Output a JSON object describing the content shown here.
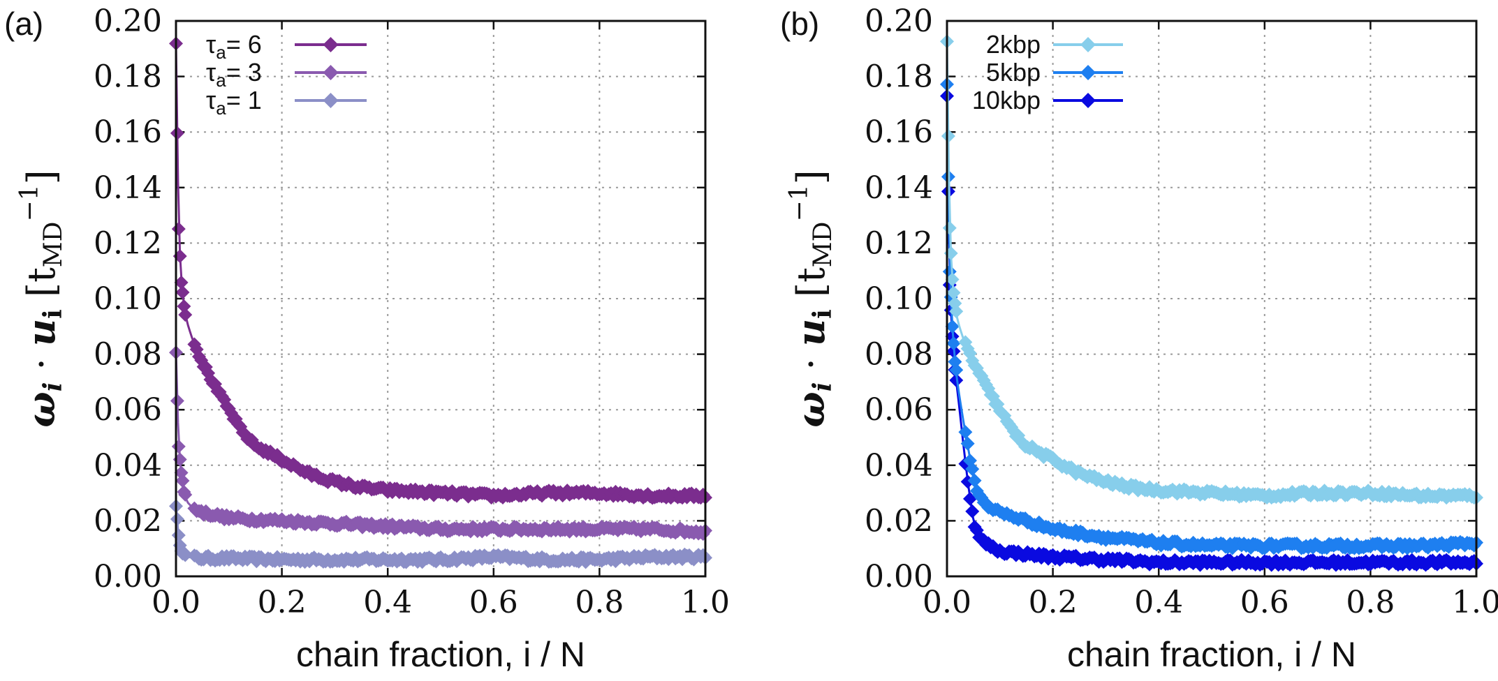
{
  "chart_data": [
    {
      "type": "line",
      "panel_label": "(a)",
      "xlabel": "chain fraction, i / N",
      "ylabel": {
        "omega": "ω",
        "i": "i",
        "dot": "·",
        "u": "u",
        "sub_i": "i",
        "unit_open": "[t",
        "unit_sub": "MD",
        "unit_sup": "−1",
        "unit_close": "]"
      },
      "xlim": [
        0,
        1
      ],
      "ylim": [
        0,
        0.2
      ],
      "x_ticks": [
        "0.0",
        "0.2",
        "0.4",
        "0.6",
        "0.8",
        "1.0"
      ],
      "y_ticks": [
        "0.00",
        "0.02",
        "0.04",
        "0.06",
        "0.08",
        "0.10",
        "0.12",
        "0.14",
        "0.16",
        "0.18",
        "0.20"
      ],
      "grid": true,
      "legend_position": "top-left",
      "series": [
        {
          "name": "6",
          "legend_prefix": "τ",
          "legend_sub": "a",
          "legend_eq": "=",
          "color": "#7b2d8e",
          "x": [
            0.0,
            0.005,
            0.01,
            0.015,
            0.02,
            0.03,
            0.05,
            0.075,
            0.1,
            0.125,
            0.15,
            0.2,
            0.25,
            0.3,
            0.35,
            0.4,
            0.5,
            0.6,
            0.7,
            0.8,
            0.9,
            1.0
          ],
          "y": [
            0.192,
            0.126,
            0.106,
            0.098,
            0.092,
            0.086,
            0.077,
            0.068,
            0.06,
            0.052,
            0.047,
            0.042,
            0.037,
            0.034,
            0.032,
            0.031,
            0.03,
            0.029,
            0.03,
            0.03,
            0.029,
            0.029
          ]
        },
        {
          "name": "3",
          "legend_prefix": "τ",
          "legend_sub": "a",
          "legend_eq": "=",
          "color": "#8a5aaf",
          "x": [
            0.0,
            0.005,
            0.01,
            0.015,
            0.02,
            0.03,
            0.05,
            0.1,
            0.2,
            0.3,
            0.4,
            0.5,
            0.6,
            0.7,
            0.8,
            0.9,
            1.0
          ],
          "y": [
            0.081,
            0.047,
            0.037,
            0.031,
            0.027,
            0.025,
            0.023,
            0.021,
            0.02,
            0.019,
            0.018,
            0.017,
            0.017,
            0.017,
            0.017,
            0.017,
            0.016
          ]
        },
        {
          "name": "1",
          "legend_prefix": "τ",
          "legend_sub": "a",
          "legend_eq": "=",
          "color": "#8b8fc7",
          "x": [
            0.0,
            0.005,
            0.01,
            0.015,
            0.02,
            0.05,
            0.1,
            0.2,
            0.3,
            0.4,
            0.5,
            0.6,
            0.7,
            0.8,
            0.9,
            1.0
          ],
          "y": [
            0.026,
            0.014,
            0.01,
            0.008,
            0.007,
            0.0065,
            0.0065,
            0.006,
            0.006,
            0.006,
            0.006,
            0.007,
            0.006,
            0.006,
            0.007,
            0.007
          ]
        }
      ]
    },
    {
      "type": "line",
      "panel_label": "(b)",
      "xlabel": "chain fraction, i / N",
      "ylabel": {
        "omega": "ω",
        "i": "i",
        "dot": "·",
        "u": "u",
        "sub_i": "i",
        "unit_open": "[t",
        "unit_sub": "MD",
        "unit_sup": "−1",
        "unit_close": "]"
      },
      "xlim": [
        0,
        1
      ],
      "ylim": [
        0,
        0.2
      ],
      "x_ticks": [
        "0.0",
        "0.2",
        "0.4",
        "0.6",
        "0.8",
        "1.0"
      ],
      "y_ticks": [
        "0.00",
        "0.02",
        "0.04",
        "0.06",
        "0.08",
        "0.10",
        "0.12",
        "0.14",
        "0.16",
        "0.18",
        "0.20"
      ],
      "grid": true,
      "legend_position": "top-left",
      "series": [
        {
          "name": "2kbp",
          "color": "#87ceeb",
          "x": [
            0.0,
            0.005,
            0.01,
            0.015,
            0.02,
            0.03,
            0.05,
            0.075,
            0.1,
            0.125,
            0.15,
            0.2,
            0.25,
            0.3,
            0.35,
            0.4,
            0.5,
            0.6,
            0.7,
            0.8,
            0.9,
            1.0
          ],
          "y": [
            0.192,
            0.126,
            0.106,
            0.098,
            0.092,
            0.086,
            0.077,
            0.068,
            0.06,
            0.052,
            0.047,
            0.042,
            0.037,
            0.034,
            0.032,
            0.031,
            0.03,
            0.029,
            0.03,
            0.03,
            0.029,
            0.029
          ]
        },
        {
          "name": "5kbp",
          "color": "#1e7ff0",
          "x": [
            0.0,
            0.005,
            0.01,
            0.015,
            0.02,
            0.03,
            0.04,
            0.05,
            0.06,
            0.08,
            0.1,
            0.15,
            0.2,
            0.3,
            0.4,
            0.5,
            0.6,
            0.7,
            0.8,
            0.9,
            1.0
          ],
          "y": [
            0.178,
            0.11,
            0.09,
            0.078,
            0.069,
            0.057,
            0.046,
            0.036,
            0.029,
            0.025,
            0.023,
            0.02,
            0.017,
            0.014,
            0.012,
            0.011,
            0.011,
            0.011,
            0.011,
            0.011,
            0.012
          ]
        },
        {
          "name": "10kbp",
          "color": "#0a0ae0",
          "x": [
            0.0,
            0.005,
            0.01,
            0.015,
            0.02,
            0.025,
            0.03,
            0.04,
            0.05,
            0.06,
            0.08,
            0.1,
            0.15,
            0.2,
            0.3,
            0.4,
            0.5,
            0.6,
            0.7,
            0.8,
            0.9,
            1.0
          ],
          "y": [
            0.173,
            0.105,
            0.086,
            0.075,
            0.066,
            0.058,
            0.049,
            0.033,
            0.02,
            0.014,
            0.011,
            0.009,
            0.008,
            0.007,
            0.006,
            0.005,
            0.005,
            0.005,
            0.005,
            0.005,
            0.005,
            0.005
          ]
        }
      ]
    }
  ]
}
